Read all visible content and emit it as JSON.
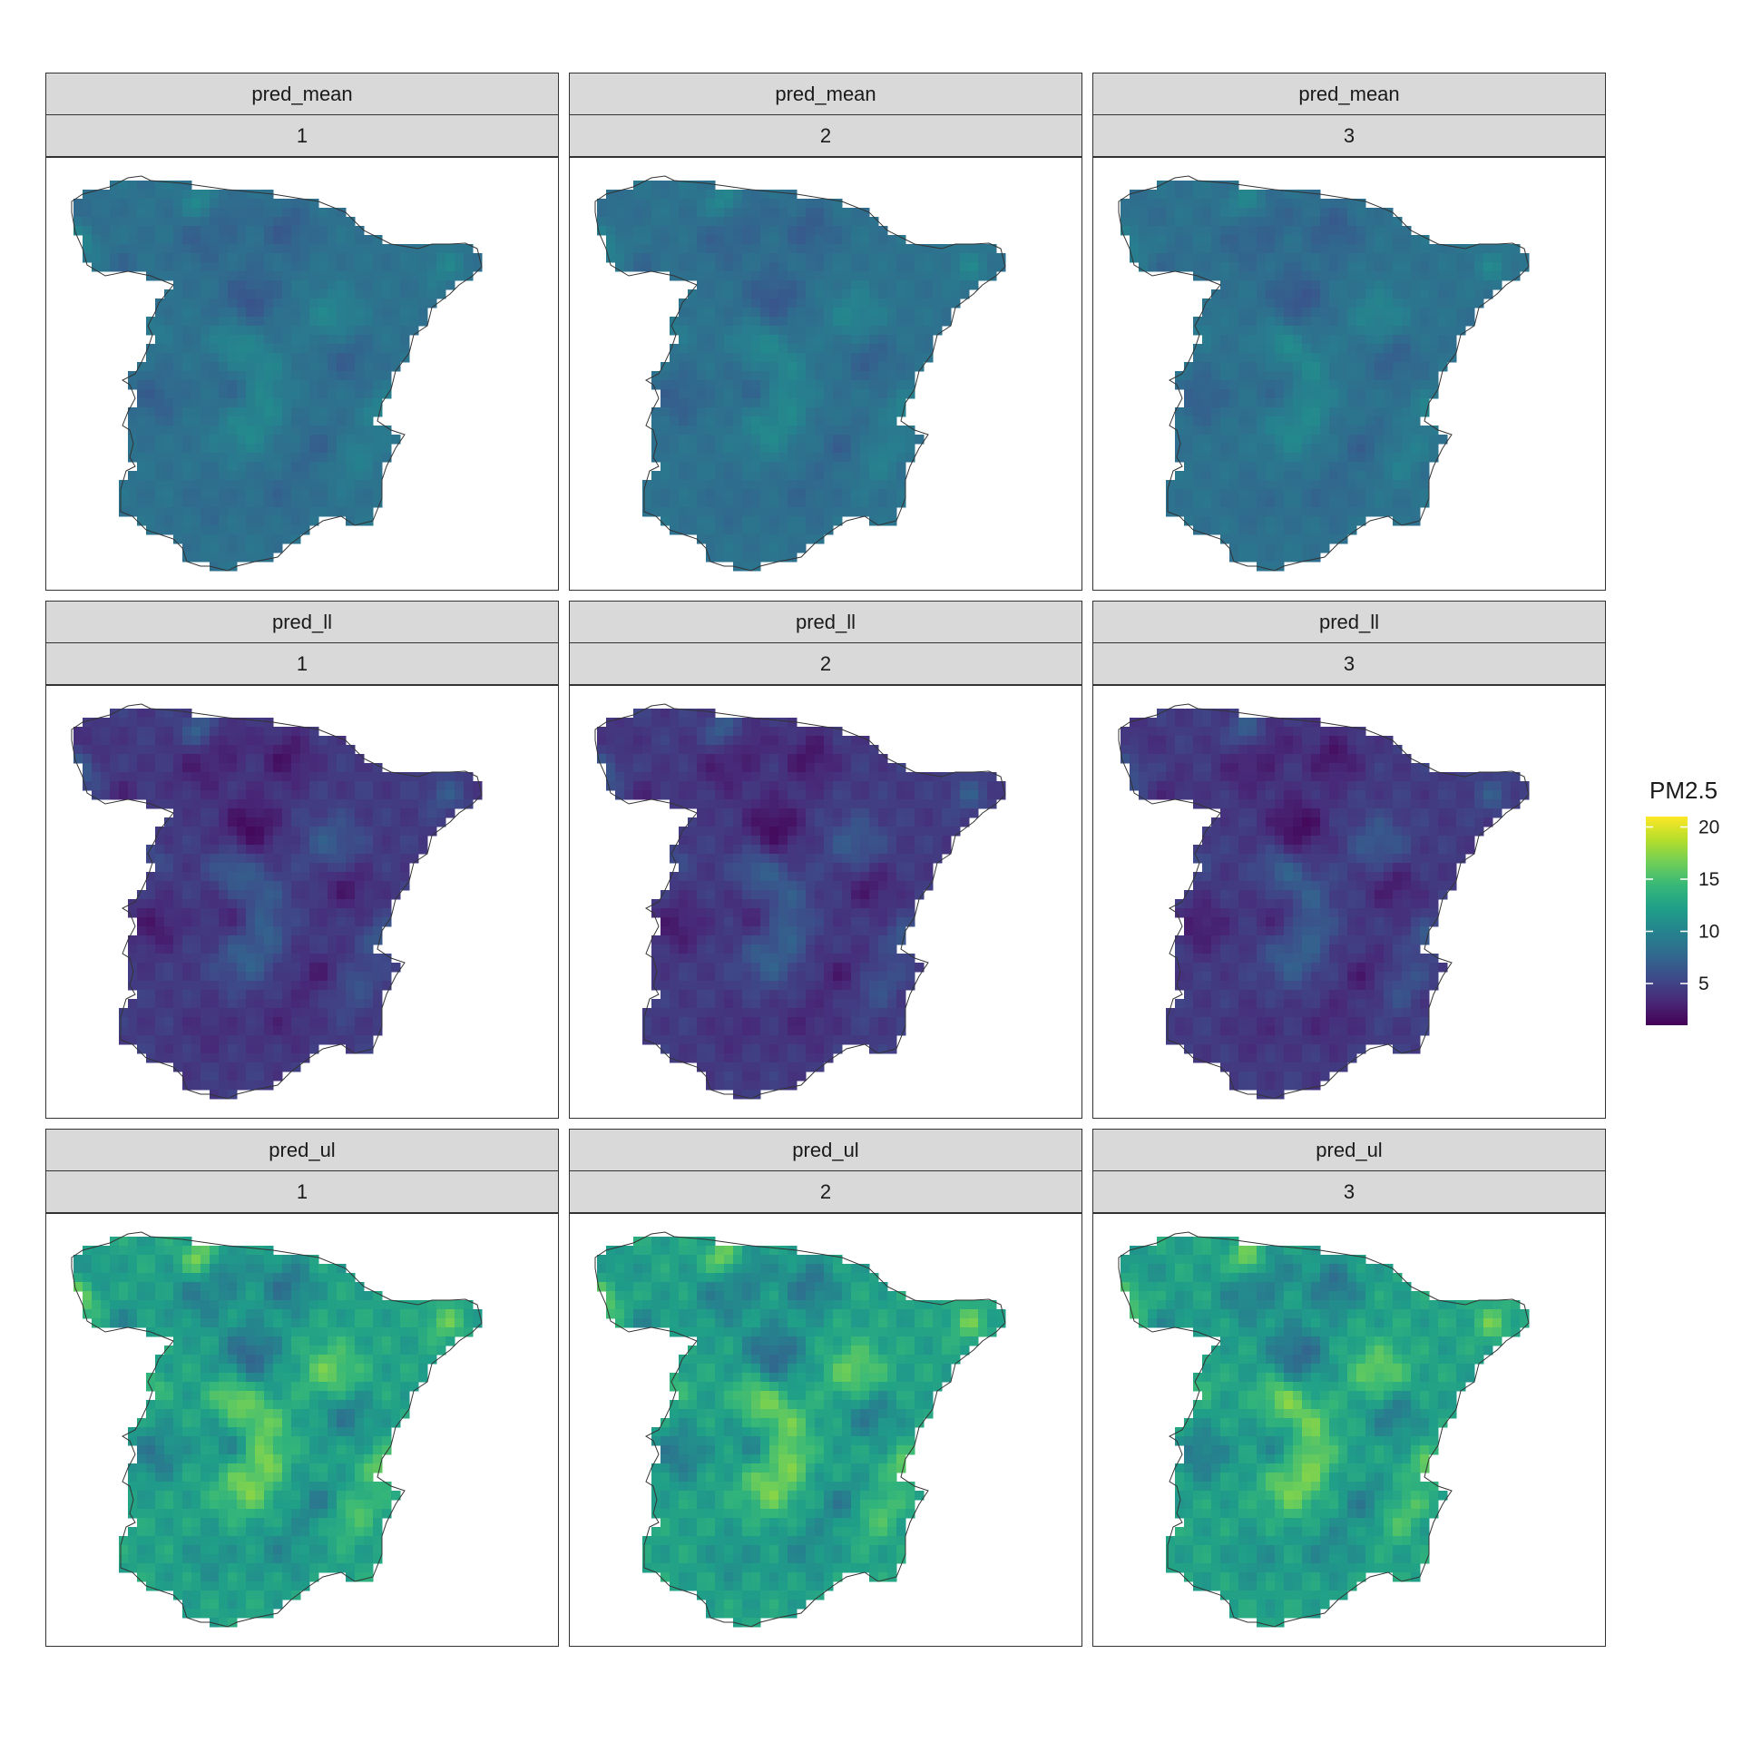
{
  "facets": [
    {
      "variable": "pred_mean",
      "index": "1"
    },
    {
      "variable": "pred_mean",
      "index": "2"
    },
    {
      "variable": "pred_mean",
      "index": "3"
    },
    {
      "variable": "pred_ll",
      "index": "1"
    },
    {
      "variable": "pred_ll",
      "index": "2"
    },
    {
      "variable": "pred_ll",
      "index": "3"
    },
    {
      "variable": "pred_ul",
      "index": "1"
    },
    {
      "variable": "pred_ul",
      "index": "2"
    },
    {
      "variable": "pred_ul",
      "index": "3"
    }
  ],
  "legend": {
    "title": "PM2.5",
    "ticks": [
      "20",
      "15",
      "10",
      "5"
    ],
    "tick_values": [
      20,
      15,
      10,
      5
    ],
    "range": [
      1,
      21
    ],
    "palette": [
      "#440154",
      "#482878",
      "#3e4989",
      "#31688e",
      "#26828e",
      "#1f9e89",
      "#35b779",
      "#6ece58",
      "#b5de2b",
      "#fde725"
    ]
  },
  "map": {
    "region": "Spain (mainland)",
    "row_base_values": {
      "pred_mean": 8.5,
      "pred_ll": 4.5,
      "pred_ul": 12.5
    },
    "outline_color": "#333333"
  }
}
